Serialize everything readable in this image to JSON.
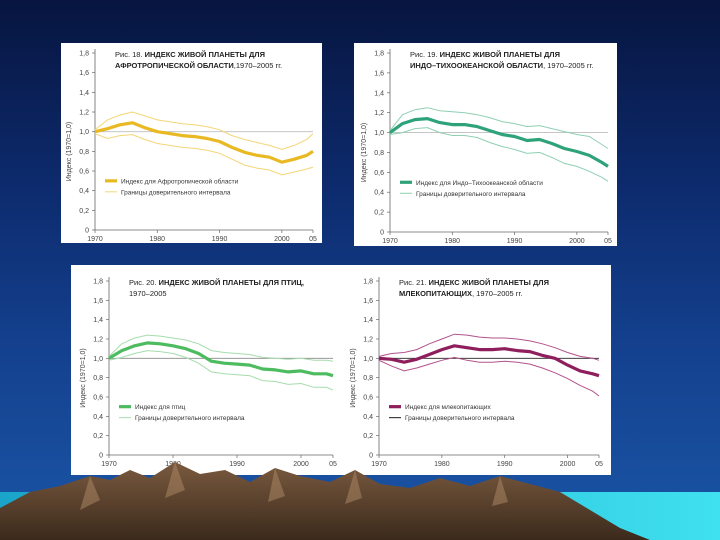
{
  "colors": {
    "afro": "#e8b923",
    "afro_light": "#f3d676",
    "indo": "#2ea37a",
    "indo_light": "#8fd0b3",
    "birds": "#4dbb5f",
    "birds_light": "#a6dcad",
    "mammals": "#8e1e5c",
    "mammals_light": "#b3528d",
    "mammals_bound": "#1a1a1a"
  },
  "chart_data": [
    {
      "type": "line",
      "title_prefix": "Рис. 18.",
      "title_line1": "ИНДЕКС ЖИВОЙ ПЛАНЕТЫ ДЛЯ",
      "title_line2": "АФРОТРОПИЧЕСКОЙ ОБЛАСТИ",
      "title_years": ",1970–2005 гг.",
      "ylabel": "Индекс (1970=1,0)",
      "ylim": [
        0,
        1.8
      ],
      "yticks": [
        "0",
        "0,2",
        "0,4",
        "0,6",
        "0,8",
        "1,0",
        "1,2",
        "1,4",
        "1,6",
        "1,8"
      ],
      "xticks": [
        "1970",
        "1980",
        "1990",
        "2000",
        "05"
      ],
      "xtick_values": [
        1970,
        1980,
        1990,
        2000,
        2005
      ],
      "x": [
        1970,
        1972,
        1974,
        1976,
        1978,
        1980,
        1982,
        1984,
        1986,
        1988,
        1990,
        1992,
        1994,
        1996,
        1998,
        2000,
        2002,
        2004,
        2005
      ],
      "series": [
        {
          "name": "index",
          "values": [
            1.0,
            1.03,
            1.07,
            1.09,
            1.04,
            1.0,
            0.98,
            0.96,
            0.95,
            0.93,
            0.9,
            0.84,
            0.79,
            0.76,
            0.74,
            0.69,
            0.72,
            0.76,
            0.8
          ]
        },
        {
          "name": "upper",
          "values": [
            1.02,
            1.12,
            1.17,
            1.2,
            1.16,
            1.12,
            1.1,
            1.08,
            1.07,
            1.05,
            1.02,
            0.96,
            0.92,
            0.89,
            0.86,
            0.82,
            0.86,
            0.92,
            0.98
          ]
        },
        {
          "name": "lower",
          "values": [
            0.98,
            0.93,
            0.96,
            0.97,
            0.92,
            0.88,
            0.86,
            0.84,
            0.83,
            0.81,
            0.78,
            0.72,
            0.66,
            0.63,
            0.61,
            0.56,
            0.59,
            0.62,
            0.64
          ]
        }
      ],
      "legend_main": "Индекс для Афротропической области",
      "legend_bounds": "Границы доверительного интервала"
    },
    {
      "type": "line",
      "title_prefix": "Рис. 19.",
      "title_line1": "ИНДЕКС ЖИВОЙ ПЛАНЕТЫ ДЛЯ",
      "title_line2": "ИНДО–ТИХООКЕАНСКОЙ ОБЛАСТИ",
      "title_years": ", 1970–2005 гг.",
      "ylabel": "Индекс (1970=1,0)",
      "ylim": [
        0,
        1.8
      ],
      "yticks": [
        "0",
        "0,2",
        "0,4",
        "0,6",
        "0,8",
        "1,0",
        "1,2",
        "1,4",
        "1,6",
        "1,8"
      ],
      "xticks": [
        "1970",
        "1980",
        "1990",
        "2000",
        "05"
      ],
      "xtick_values": [
        1970,
        1980,
        1990,
        2000,
        2005
      ],
      "x": [
        1970,
        1972,
        1974,
        1976,
        1978,
        1980,
        1982,
        1984,
        1986,
        1988,
        1990,
        1992,
        1994,
        1996,
        1998,
        2000,
        2002,
        2004,
        2005
      ],
      "series": [
        {
          "name": "index",
          "values": [
            1.0,
            1.09,
            1.13,
            1.14,
            1.1,
            1.08,
            1.08,
            1.06,
            1.02,
            0.98,
            0.96,
            0.92,
            0.93,
            0.89,
            0.84,
            0.81,
            0.77,
            0.7,
            0.66
          ]
        },
        {
          "name": "upper",
          "values": [
            1.02,
            1.18,
            1.23,
            1.25,
            1.22,
            1.21,
            1.2,
            1.18,
            1.15,
            1.11,
            1.09,
            1.06,
            1.07,
            1.04,
            1.01,
            0.98,
            0.96,
            0.88,
            0.84
          ]
        },
        {
          "name": "lower",
          "values": [
            0.98,
            1.0,
            1.04,
            1.05,
            1.0,
            0.97,
            0.97,
            0.95,
            0.9,
            0.86,
            0.83,
            0.79,
            0.8,
            0.75,
            0.69,
            0.66,
            0.61,
            0.55,
            0.51
          ]
        }
      ],
      "legend_main": "Индекс для Индо–Тихоокеанской области",
      "legend_bounds": "Границы доверительного интервала"
    },
    {
      "type": "line",
      "title_prefix": "Рис. 20.",
      "title_line1": "ИНДЕКС ЖИВОЙ ПЛАНЕТЫ ДЛЯ ПТИЦ,",
      "title_line2": "",
      "title_years": "1970–2005",
      "ylabel": "Индекс (1970=1,0)",
      "ylim": [
        0,
        1.8
      ],
      "yticks": [
        "0",
        "0,2",
        "0,4",
        "0,6",
        "0,8",
        "1,0",
        "1,2",
        "1,4",
        "1,6",
        "1,8"
      ],
      "xticks": [
        "1970",
        "1980",
        "1990",
        "2000",
        "05"
      ],
      "xtick_values": [
        1970,
        1980,
        1990,
        2000,
        2005
      ],
      "x": [
        1970,
        1972,
        1974,
        1976,
        1978,
        1980,
        1982,
        1984,
        1986,
        1988,
        1990,
        1992,
        1994,
        1996,
        1998,
        2000,
        2002,
        2004,
        2005
      ],
      "series": [
        {
          "name": "index",
          "values": [
            1.0,
            1.08,
            1.13,
            1.16,
            1.15,
            1.13,
            1.1,
            1.05,
            0.97,
            0.95,
            0.94,
            0.93,
            0.89,
            0.88,
            0.86,
            0.87,
            0.84,
            0.84,
            0.82
          ]
        },
        {
          "name": "upper",
          "values": [
            1.02,
            1.15,
            1.21,
            1.24,
            1.23,
            1.21,
            1.19,
            1.15,
            1.08,
            1.06,
            1.05,
            1.04,
            1.01,
            1.0,
            0.99,
            1.0,
            0.98,
            0.98,
            0.97
          ]
        },
        {
          "name": "lower",
          "values": [
            0.98,
            1.01,
            1.05,
            1.08,
            1.07,
            1.05,
            1.01,
            0.95,
            0.86,
            0.84,
            0.83,
            0.82,
            0.77,
            0.76,
            0.73,
            0.74,
            0.7,
            0.7,
            0.67
          ]
        }
      ],
      "legend_main": "Индекс для птиц",
      "legend_bounds": "Границы доверительного интервала"
    },
    {
      "type": "line",
      "title_prefix": "Рис. 21.",
      "title_line1": "ИНДЕКС ЖИВОЙ ПЛАНЕТЫ ДЛЯ",
      "title_line2": "МЛЕКОПИТАЮЩИХ",
      "title_years": ", 1970–2005 гг.",
      "ylabel": "Индекс (1970=1,0)",
      "ylim": [
        0,
        1.8
      ],
      "yticks": [
        "0",
        "0,2",
        "0,4",
        "0,6",
        "0,8",
        "1,0",
        "1,2",
        "1,4",
        "1,6",
        "1,8"
      ],
      "xticks": [
        "1970",
        "1980",
        "1990",
        "2000",
        "05"
      ],
      "xtick_values": [
        1970,
        1980,
        1990,
        2000,
        2005
      ],
      "x": [
        1970,
        1972,
        1974,
        1976,
        1978,
        1980,
        1982,
        1984,
        1986,
        1988,
        1990,
        1992,
        1994,
        1996,
        1998,
        2000,
        2002,
        2004,
        2005
      ],
      "series": [
        {
          "name": "index",
          "values": [
            1.0,
            0.99,
            0.96,
            0.99,
            1.04,
            1.09,
            1.13,
            1.11,
            1.09,
            1.09,
            1.1,
            1.08,
            1.07,
            1.03,
            1.0,
            0.93,
            0.87,
            0.84,
            0.82
          ]
        },
        {
          "name": "upper",
          "values": [
            1.02,
            1.05,
            1.06,
            1.09,
            1.15,
            1.2,
            1.25,
            1.24,
            1.22,
            1.21,
            1.21,
            1.2,
            1.18,
            1.15,
            1.11,
            1.06,
            1.02,
            1.0,
            0.98
          ]
        },
        {
          "name": "lower",
          "values": [
            0.98,
            0.92,
            0.87,
            0.9,
            0.94,
            0.98,
            1.01,
            0.98,
            0.96,
            0.96,
            0.97,
            0.96,
            0.94,
            0.9,
            0.85,
            0.79,
            0.72,
            0.66,
            0.61
          ]
        }
      ],
      "legend_main": "Индекс для млекопитающих",
      "legend_bounds": "Границы доверительного интервала"
    }
  ]
}
